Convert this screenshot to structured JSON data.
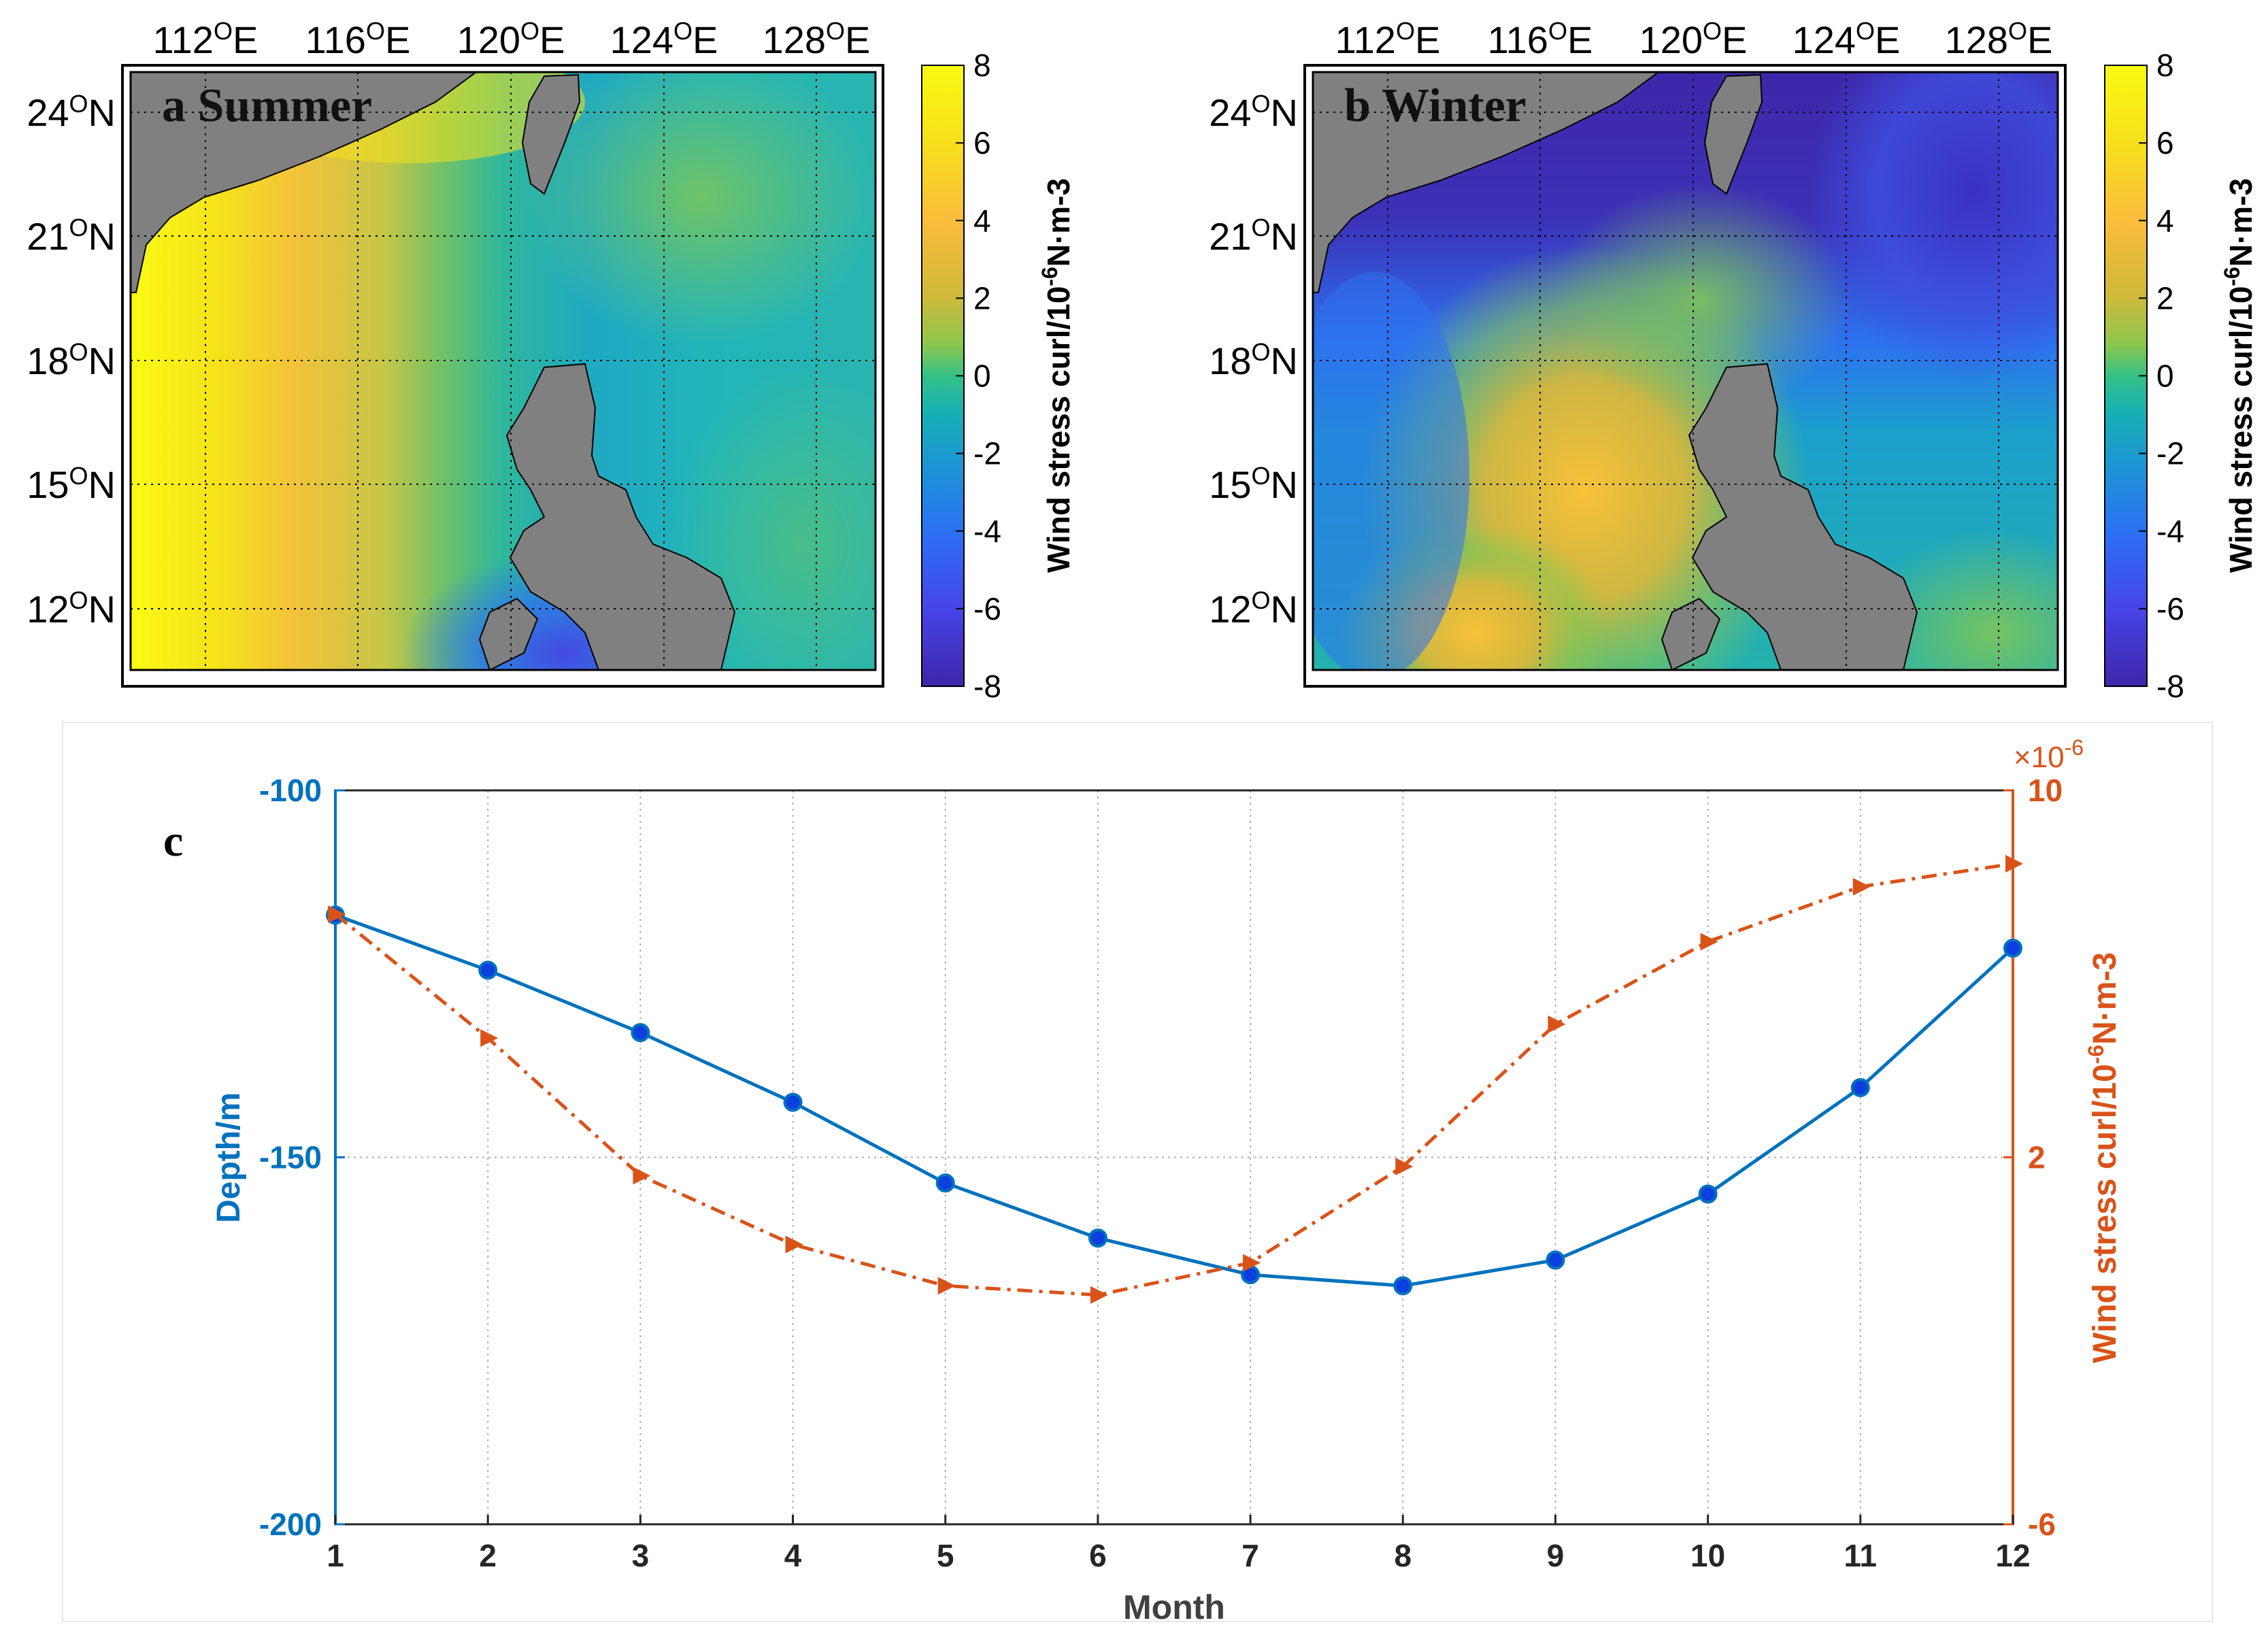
{
  "panels": {
    "a": {
      "label": "a Summer"
    },
    "b": {
      "label": "b Winter"
    }
  },
  "map_axes": {
    "lon_ticks": [
      {
        "deg": "112",
        "dir": "E"
      },
      {
        "deg": "116",
        "dir": "E"
      },
      {
        "deg": "120",
        "dir": "E"
      },
      {
        "deg": "124",
        "dir": "E"
      },
      {
        "deg": "128",
        "dir": "E"
      }
    ],
    "lat_ticks": [
      {
        "deg": "24",
        "dir": "N"
      },
      {
        "deg": "21",
        "dir": "N"
      },
      {
        "deg": "18",
        "dir": "N"
      },
      {
        "deg": "15",
        "dir": "N"
      },
      {
        "deg": "12",
        "dir": "N"
      }
    ],
    "degree_symbol": "O"
  },
  "colorbar": {
    "ticks": [
      "8",
      "6",
      "4",
      "2",
      "0",
      "-2",
      "-4",
      "-6",
      "-8"
    ],
    "label_prefix": "Wind stress curl/10",
    "label_exponent": "-6",
    "label_suffix": "N·m-3",
    "colors": [
      "#3e26a8",
      "#4743e6",
      "#2d6ef5",
      "#1e93d6",
      "#16b0b2",
      "#35c186",
      "#8cc74e",
      "#d0b93a",
      "#fbbc3c",
      "#f6e11c",
      "#fafa13"
    ]
  },
  "chart_data": {
    "type": "line",
    "panel_label": "c",
    "xlabel": "Month",
    "ylabel_left": "Depth/m",
    "ylabel_right_prefix": "Wind stress curl/10",
    "ylabel_right_exponent": "-6",
    "ylabel_right_suffix": "N·m-3",
    "right_multiplier_base": "×10",
    "right_multiplier_exponent": "-6",
    "x": [
      1,
      2,
      3,
      4,
      5,
      6,
      7,
      8,
      9,
      10,
      11,
      12
    ],
    "xlim": [
      1,
      12
    ],
    "ylim_left": [
      -200,
      -100
    ],
    "ylim_right": [
      -6,
      10
    ],
    "yticks_left": [
      "-100",
      "-150",
      "-200"
    ],
    "yticks_right": [
      "10",
      "2",
      "-6"
    ],
    "grid": true,
    "series": [
      {
        "axis": "left",
        "color": "#0072bd",
        "marker": "circle",
        "style": "solid",
        "values": [
          -117,
          -124.5,
          -133,
          -142.5,
          -153.5,
          -161,
          -166,
          -167.5,
          -164,
          -155,
          -140.5,
          -121.5
        ]
      },
      {
        "axis": "right",
        "color": "#d95319",
        "marker": "triangle-right",
        "style": "dashdot",
        "values": [
          7.3,
          4.6,
          1.6,
          0.1,
          -0.8,
          -1.0,
          -0.3,
          1.8,
          4.9,
          6.7,
          7.9,
          8.4
        ]
      }
    ]
  }
}
